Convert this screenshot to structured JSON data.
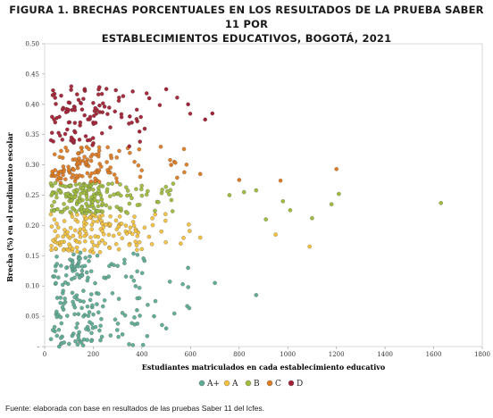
{
  "title_line1": "FIGURA 1. BRECHAS PORCENTUALES EN LOS RESULTADOS DE LA PRUEBA SABER 11 POR",
  "title_line2": "ESTABLECIMIENTOS EDUCATIVOS, BOGOTÁ, 2021",
  "source": "Fuente: elaborada con base en resultados de las pruebas Saber 11 del Icfes.",
  "chart_data": {
    "type": "scatter",
    "xlabel": "Estudiantes matriculados en cada establecimiento educativo",
    "ylabel": "Brecha (%) en el rendimiento escolar",
    "xlim": [
      0,
      1800
    ],
    "ylim": [
      0,
      0.5
    ],
    "x_ticks": [
      0,
      200,
      400,
      600,
      800,
      1000,
      1200,
      1400,
      1600,
      1800
    ],
    "x_tick_labels": [
      "0",
      "200",
      "400",
      "600",
      "800",
      "1000",
      "1200",
      "1400",
      "1600",
      "1800"
    ],
    "y_ticks": [
      0,
      0.05,
      0.1,
      0.15,
      0.2,
      0.25,
      0.3,
      0.35,
      0.4,
      0.45,
      0.5
    ],
    "y_tick_labels": [
      "-",
      "0.05",
      "0.10",
      "0.15",
      "0.20",
      "0.25",
      "0.30",
      "0.35",
      "0.40",
      "0.45",
      "0.50"
    ],
    "grid": false,
    "legend_position": "bottom",
    "series": [
      {
        "name": "A+",
        "color": "#5cad95",
        "y_range": [
          0.0,
          0.155
        ],
        "highlights": [
          [
            590,
            0.13
          ],
          [
            870,
            0.085
          ],
          [
            700,
            0.105
          ],
          [
            500,
            0.03
          ],
          [
            380,
            0.06
          ],
          [
            450,
            0.05
          ],
          [
            320,
            0.02
          ],
          [
            60,
            0.0
          ]
        ]
      },
      {
        "name": "A",
        "color": "#f5c23c",
        "y_range": [
          0.155,
          0.22
        ],
        "highlights": [
          [
            1090,
            0.165
          ],
          [
            950,
            0.185
          ],
          [
            640,
            0.18
          ],
          [
            560,
            0.17
          ],
          [
            480,
            0.19
          ]
        ]
      },
      {
        "name": "B",
        "color": "#9fbd3b",
        "y_range": [
          0.22,
          0.27
        ],
        "highlights": [
          [
            1630,
            0.237
          ],
          [
            1210,
            0.252
          ],
          [
            1100,
            0.212
          ],
          [
            1180,
            0.235
          ],
          [
            980,
            0.24
          ],
          [
            870,
            0.258
          ],
          [
            820,
            0.255
          ],
          [
            760,
            0.25
          ],
          [
            1010,
            0.225
          ],
          [
            910,
            0.21
          ]
        ]
      },
      {
        "name": "C",
        "color": "#e07b1f",
        "y_range": [
          0.27,
          0.33
        ],
        "highlights": [
          [
            1200,
            0.293
          ],
          [
            970,
            0.274
          ],
          [
            800,
            0.275
          ],
          [
            640,
            0.285
          ],
          [
            520,
            0.3
          ]
        ]
      },
      {
        "name": "D",
        "color": "#a31f33",
        "y_range": [
          0.33,
          0.43
        ],
        "highlights": [
          [
            590,
            0.4
          ],
          [
            690,
            0.385
          ],
          [
            660,
            0.375
          ],
          [
            500,
            0.425
          ],
          [
            430,
            0.41
          ],
          [
            390,
            0.355
          ],
          [
            350,
            0.38
          ]
        ]
      }
    ]
  }
}
